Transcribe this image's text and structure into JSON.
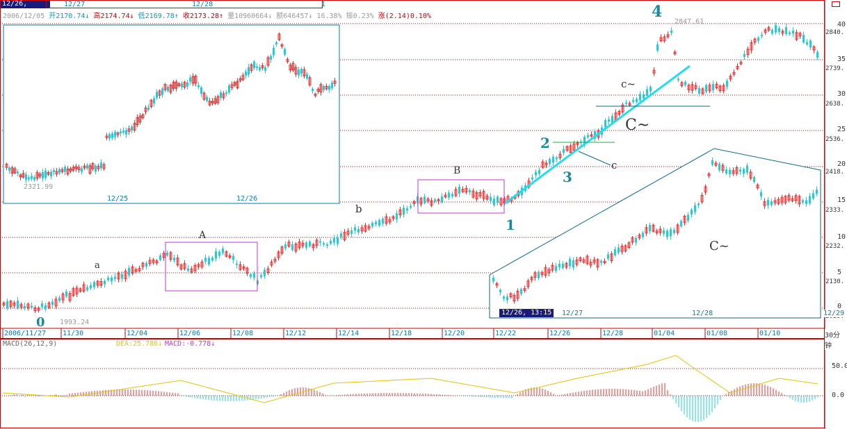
{
  "topbar": {
    "current_time": "12/26, 13:15",
    "dates": [
      "12/27",
      "12/28",
      "1"
    ]
  },
  "infoline": {
    "date": "2006/12/05",
    "open": "开2170.74↓",
    "high": "高2174.74↓",
    "low": "低2169.78↑",
    "close": "收2173.28↑",
    "volume": "量10960664↓",
    "amount": "额646457↓",
    "turnover": "16.38%",
    "amplitude": "振0.23%",
    "change": "涨(2.14)0.10%"
  },
  "main_chart": {
    "y_axis_labels": [
      "40",
      "2840.",
      "35",
      "2739.",
      "30",
      "2638.",
      "25",
      "2536.",
      "20",
      "2418.",
      "15",
      "2333.",
      "10",
      "2232.",
      "5",
      "2130.",
      "0",
      "2029."
    ],
    "x_axis_labels": [
      "2006/11/27",
      "11/30",
      "12/04",
      "12/06",
      "12/08",
      "12/12",
      "12/14",
      "12/18",
      "12/20",
      "12/22",
      "12/26",
      "12/28",
      "01/04",
      "01/08",
      "01/10"
    ],
    "x_axis_right": "30分钟",
    "low_marker": "1993.24",
    "high_marker": "2847.61",
    "wave_labels": [
      "0",
      "a",
      "A",
      "b",
      "B",
      "1",
      "2",
      "3",
      "c",
      "4",
      "C~",
      "c~",
      "C~"
    ],
    "colors": {
      "up": "#e83030",
      "down": "#22ccdd",
      "grid": "#c00000",
      "frame": "#0a6a8a",
      "box": "#cc33cc",
      "trend": "#22ddee"
    }
  },
  "inset_top": {
    "low_marker": "2321.99",
    "x_labels": [
      "12/25",
      "12/26"
    ]
  },
  "inset_bottom": {
    "current_time": "12/26, 13:15",
    "x_labels": [
      "12/27",
      "12/28",
      "12/29"
    ]
  },
  "macd": {
    "title": "MACD(26,12,9)",
    "dea": "DEA:25.786↓",
    "macd_value": "MACD:-0.778↓",
    "y_labels": [
      "50.0",
      "0.0"
    ]
  }
}
